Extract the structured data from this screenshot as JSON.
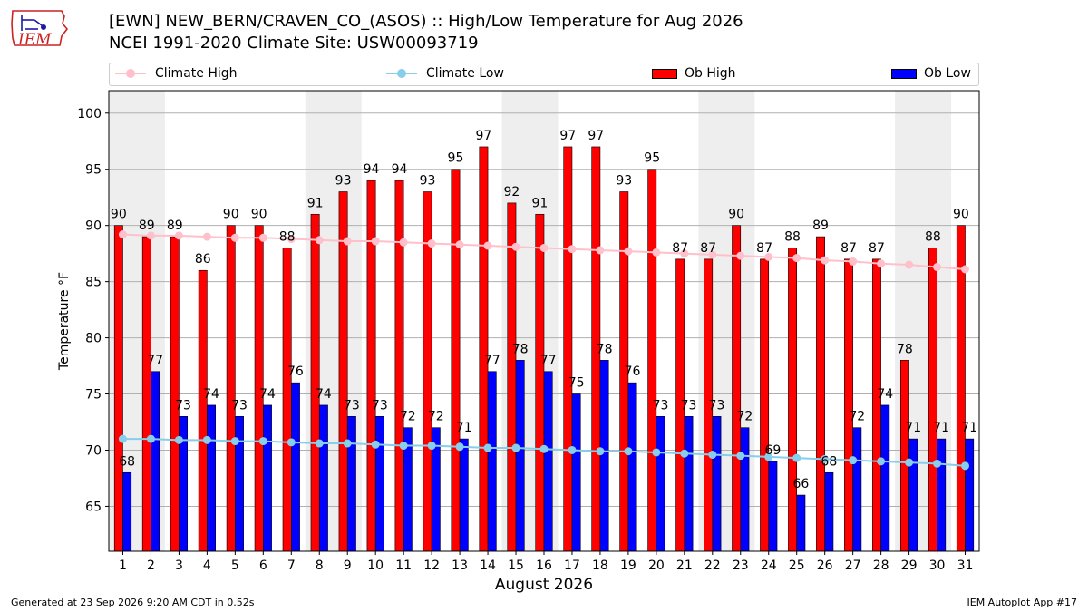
{
  "header": {
    "title_line1": "[EWN] NEW_BERN/CRAVEN_CO_(ASOS) :: High/Low Temperature for Aug 2026",
    "title_line2": "NCEI 1991-2020 Climate Site: USW00093719",
    "logo_text": "IEM"
  },
  "footer": {
    "generated": "Generated at 23 Sep 2026 9:20 AM CDT in 0.52s",
    "app": "IEM Autoplot App #17"
  },
  "colors": {
    "ob_high": "#ff0000",
    "ob_low": "#0000ff",
    "climate_high": "#ffc0cb",
    "climate_low": "#87ceeb",
    "weekend_shade": "#eeeeee",
    "grid": "#b0b0b0",
    "logo_red": "#cc2222",
    "logo_blue": "#1a1aa8"
  },
  "chart_data": {
    "type": "bar",
    "xlabel": "August 2026",
    "ylabel": "Temperature °F",
    "ylim": [
      61,
      102
    ],
    "yticks": [
      65,
      70,
      75,
      80,
      85,
      90,
      95,
      100
    ],
    "grid": "horizontal",
    "legend_position": "top",
    "x": [
      1,
      2,
      3,
      4,
      5,
      6,
      7,
      8,
      9,
      10,
      11,
      12,
      13,
      14,
      15,
      16,
      17,
      18,
      19,
      20,
      21,
      22,
      23,
      24,
      25,
      26,
      27,
      28,
      29,
      30,
      31
    ],
    "weekend_bands": [
      [
        1,
        2
      ],
      [
        8,
        9
      ],
      [
        15,
        16
      ],
      [
        22,
        23
      ],
      [
        29,
        30
      ]
    ],
    "series": [
      {
        "name": "Ob High",
        "kind": "bar",
        "values": [
          90,
          89,
          89,
          86,
          90,
          90,
          88,
          91,
          93,
          94,
          94,
          93,
          95,
          97,
          92,
          91,
          97,
          97,
          93,
          95,
          87,
          87,
          90,
          87,
          88,
          89,
          87,
          87,
          78,
          88,
          90
        ]
      },
      {
        "name": "Ob Low",
        "kind": "bar",
        "values": [
          68,
          77,
          73,
          74,
          73,
          74,
          76,
          74,
          73,
          73,
          72,
          72,
          71,
          77,
          78,
          77,
          75,
          78,
          76,
          73,
          73,
          73,
          72,
          69,
          66,
          68,
          72,
          74,
          71,
          71,
          71
        ]
      },
      {
        "name": "Climate High",
        "kind": "line",
        "values": [
          89.2,
          89.1,
          89.1,
          89.0,
          88.9,
          88.9,
          88.8,
          88.7,
          88.6,
          88.6,
          88.5,
          88.4,
          88.3,
          88.2,
          88.1,
          88.0,
          87.9,
          87.8,
          87.7,
          87.6,
          87.5,
          87.4,
          87.3,
          87.2,
          87.1,
          86.9,
          86.8,
          86.6,
          86.5,
          86.3,
          86.1
        ]
      },
      {
        "name": "Climate Low",
        "kind": "line",
        "values": [
          71.0,
          71.0,
          70.9,
          70.9,
          70.8,
          70.8,
          70.7,
          70.6,
          70.6,
          70.5,
          70.4,
          70.4,
          70.3,
          70.2,
          70.2,
          70.1,
          70.0,
          69.9,
          69.9,
          69.8,
          69.7,
          69.6,
          69.5,
          69.4,
          69.3,
          69.2,
          69.1,
          69.0,
          68.9,
          68.8,
          68.6
        ]
      }
    ]
  }
}
